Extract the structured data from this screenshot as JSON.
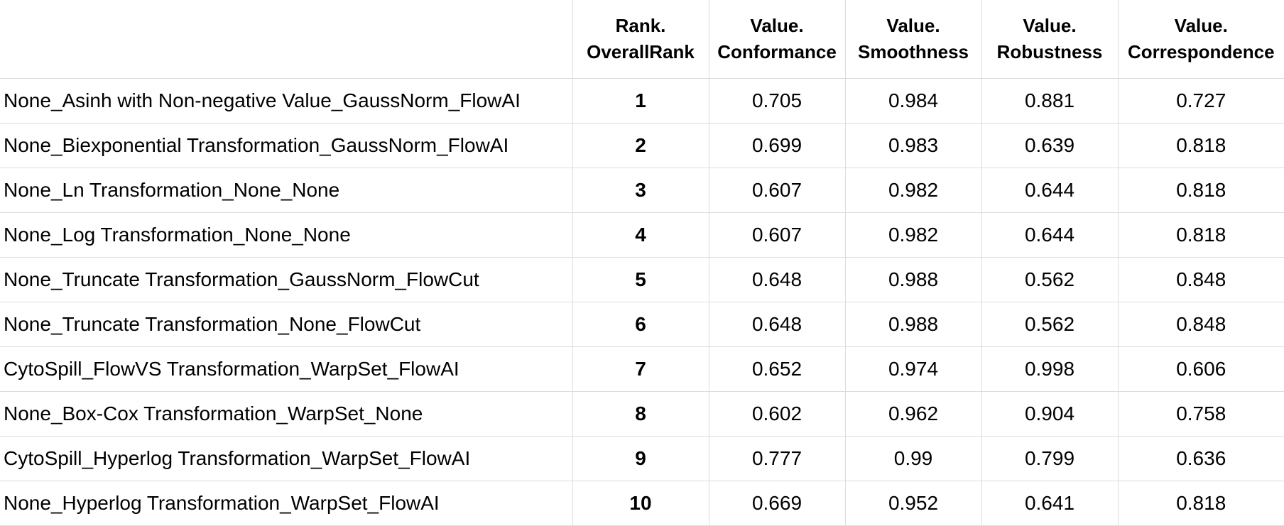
{
  "table": {
    "headers": [
      {
        "line1": "",
        "line2": ""
      },
      {
        "line1": "Rank.",
        "line2": "OverallRank"
      },
      {
        "line1": "Value.",
        "line2": "Conformance"
      },
      {
        "line1": "Value.",
        "line2": "Smoothness"
      },
      {
        "line1": "Value.",
        "line2": "Robustness"
      },
      {
        "line1": "Value.",
        "line2": "Correspondence"
      }
    ],
    "rows": [
      {
        "name": "None_Asinh with Non-negative Value_GaussNorm_FlowAI",
        "rank": "1",
        "conformance": "0.705",
        "smoothness": "0.984",
        "robustness": "0.881",
        "correspondence": "0.727"
      },
      {
        "name": "None_Biexponential Transformation_GaussNorm_FlowAI",
        "rank": "2",
        "conformance": "0.699",
        "smoothness": "0.983",
        "robustness": "0.639",
        "correspondence": "0.818"
      },
      {
        "name": "None_Ln Transformation_None_None",
        "rank": "3",
        "conformance": "0.607",
        "smoothness": "0.982",
        "robustness": "0.644",
        "correspondence": "0.818"
      },
      {
        "name": "None_Log Transformation_None_None",
        "rank": "4",
        "conformance": "0.607",
        "smoothness": "0.982",
        "robustness": "0.644",
        "correspondence": "0.818"
      },
      {
        "name": "None_Truncate Transformation_GaussNorm_FlowCut",
        "rank": "5",
        "conformance": "0.648",
        "smoothness": "0.988",
        "robustness": "0.562",
        "correspondence": "0.848"
      },
      {
        "name": "None_Truncate Transformation_None_FlowCut",
        "rank": "6",
        "conformance": "0.648",
        "smoothness": "0.988",
        "robustness": "0.562",
        "correspondence": "0.848"
      },
      {
        "name": "CytoSpill_FlowVS Transformation_WarpSet_FlowAI",
        "rank": "7",
        "conformance": "0.652",
        "smoothness": "0.974",
        "robustness": "0.998",
        "correspondence": "0.606"
      },
      {
        "name": "None_Box-Cox Transformation_WarpSet_None",
        "rank": "8",
        "conformance": "0.602",
        "smoothness": "0.962",
        "robustness": "0.904",
        "correspondence": "0.758"
      },
      {
        "name": "CytoSpill_Hyperlog Transformation_WarpSet_FlowAI",
        "rank": "9",
        "conformance": "0.777",
        "smoothness": "0.99",
        "robustness": "0.799",
        "correspondence": "0.636"
      },
      {
        "name": "None_Hyperlog Transformation_WarpSet_FlowAI",
        "rank": "10",
        "conformance": "0.669",
        "smoothness": "0.952",
        "robustness": "0.641",
        "correspondence": "0.818"
      }
    ]
  }
}
